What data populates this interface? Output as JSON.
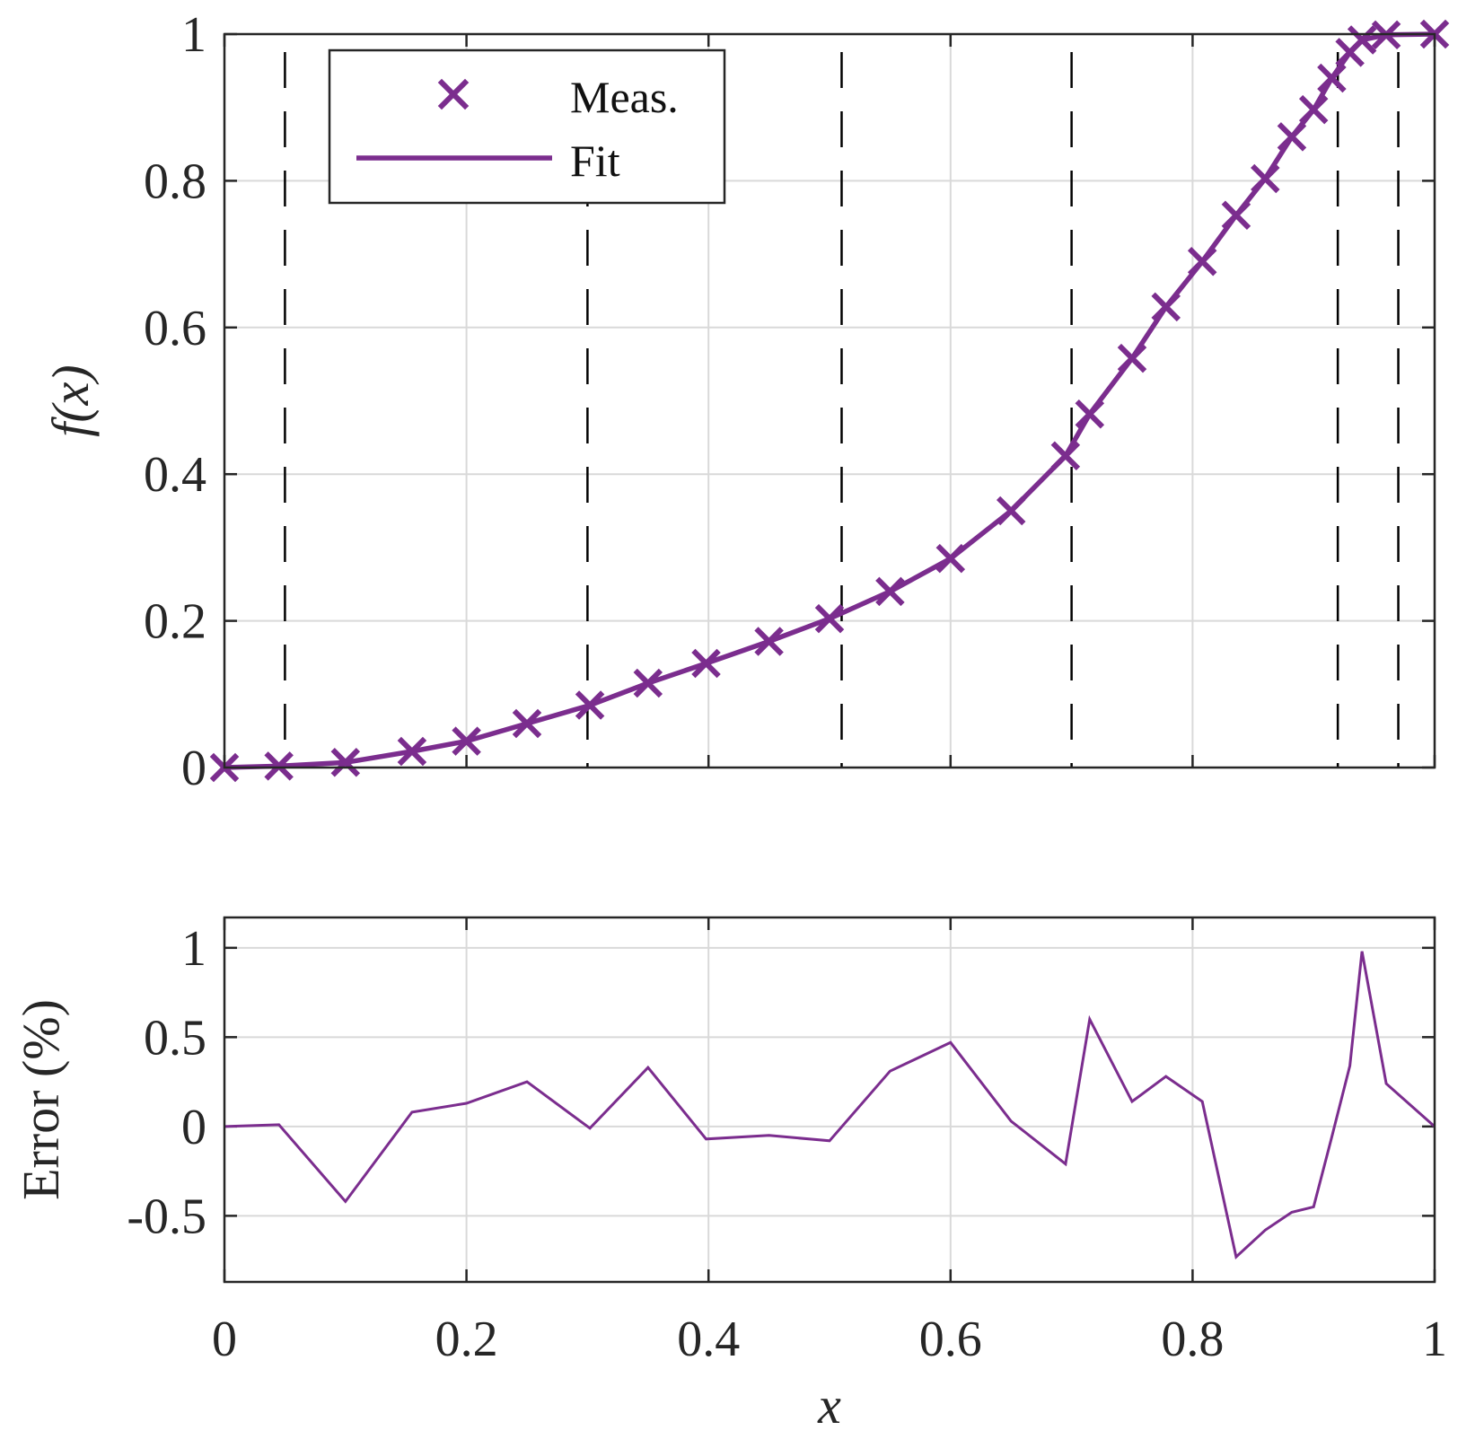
{
  "colors": {
    "series": "#7B2D8E",
    "grid": "#d9d9d9",
    "axis": "#262626",
    "knot": "#000000"
  },
  "chart_data": [
    {
      "type": "line",
      "xlim": [
        0,
        1
      ],
      "ylim": [
        0,
        1
      ],
      "xlabel": "",
      "ylabel": "f(x)",
      "grid": true,
      "legend_position": "top-left",
      "x_ticks": [
        {
          "value": 0,
          "label": ""
        },
        {
          "value": 0.2,
          "label": ""
        },
        {
          "value": 0.4,
          "label": ""
        },
        {
          "value": 0.6,
          "label": ""
        },
        {
          "value": 0.8,
          "label": ""
        },
        {
          "value": 1,
          "label": ""
        }
      ],
      "y_ticks": [
        {
          "value": 0,
          "label": "0"
        },
        {
          "value": 0.2,
          "label": "0.2"
        },
        {
          "value": 0.4,
          "label": "0.4"
        },
        {
          "value": 0.6,
          "label": "0.6"
        },
        {
          "value": 0.8,
          "label": "0.8"
        },
        {
          "value": 1,
          "label": "1"
        }
      ],
      "knots": [
        0.05,
        0.3,
        0.51,
        0.7,
        0.92,
        0.97
      ],
      "series": [
        {
          "name": "Meas.",
          "style": "markers-x",
          "x": [
            0,
            0.045,
            0.1,
            0.155,
            0.2,
            0.25,
            0.302,
            0.35,
            0.398,
            0.45,
            0.5,
            0.55,
            0.6,
            0.65,
            0.695,
            0.715,
            0.75,
            0.778,
            0.808,
            0.836,
            0.86,
            0.882,
            0.9,
            0.915,
            0.93,
            0.94,
            0.96,
            1.0
          ],
          "y": [
            0,
            0.002,
            0.007,
            0.022,
            0.036,
            0.06,
            0.085,
            0.115,
            0.142,
            0.172,
            0.203,
            0.24,
            0.285,
            0.35,
            0.425,
            0.482,
            0.558,
            0.628,
            0.69,
            0.753,
            0.803,
            0.86,
            0.897,
            0.94,
            0.975,
            0.992,
            0.999,
            1.0
          ]
        },
        {
          "name": "Fit",
          "style": "line",
          "x": [
            0,
            0.045,
            0.1,
            0.155,
            0.2,
            0.25,
            0.302,
            0.35,
            0.398,
            0.45,
            0.5,
            0.55,
            0.6,
            0.65,
            0.695,
            0.715,
            0.75,
            0.778,
            0.808,
            0.836,
            0.86,
            0.882,
            0.9,
            0.915,
            0.93,
            0.94,
            0.96,
            1.0
          ],
          "y": [
            0,
            0.002,
            0.007,
            0.022,
            0.036,
            0.06,
            0.085,
            0.115,
            0.142,
            0.172,
            0.203,
            0.24,
            0.285,
            0.35,
            0.425,
            0.482,
            0.558,
            0.628,
            0.69,
            0.753,
            0.803,
            0.86,
            0.897,
            0.94,
            0.975,
            0.992,
            0.999,
            1.0
          ]
        }
      ]
    },
    {
      "type": "line",
      "xlim": [
        0,
        1
      ],
      "ylim": [
        -0.87,
        1.17
      ],
      "xlabel": "x",
      "ylabel": "Error (%)",
      "grid": true,
      "x_ticks": [
        {
          "value": 0,
          "label": "0"
        },
        {
          "value": 0.2,
          "label": "0.2"
        },
        {
          "value": 0.4,
          "label": "0.4"
        },
        {
          "value": 0.6,
          "label": "0.6"
        },
        {
          "value": 0.8,
          "label": "0.8"
        },
        {
          "value": 1,
          "label": "1"
        }
      ],
      "y_ticks": [
        {
          "value": -0.5,
          "label": "-0.5"
        },
        {
          "value": 0,
          "label": "0"
        },
        {
          "value": 0.5,
          "label": "0.5"
        },
        {
          "value": 1,
          "label": "1"
        }
      ],
      "series": [
        {
          "x": [
            0,
            0.045,
            0.1,
            0.155,
            0.2,
            0.25,
            0.302,
            0.35,
            0.398,
            0.45,
            0.5,
            0.55,
            0.6,
            0.65,
            0.695,
            0.715,
            0.75,
            0.778,
            0.808,
            0.836,
            0.86,
            0.882,
            0.9,
            0.915,
            0.93,
            0.94,
            0.96,
            1.0
          ],
          "y": [
            0,
            0.01,
            -0.42,
            0.08,
            0.13,
            0.25,
            -0.01,
            0.33,
            -0.07,
            -0.05,
            -0.08,
            0.31,
            0.47,
            0.03,
            -0.21,
            0.6,
            0.14,
            0.28,
            0.14,
            -0.73,
            -0.58,
            -0.48,
            -0.45,
            -0.06,
            0.34,
            0.98,
            0.24,
            0.0
          ]
        }
      ]
    }
  ]
}
